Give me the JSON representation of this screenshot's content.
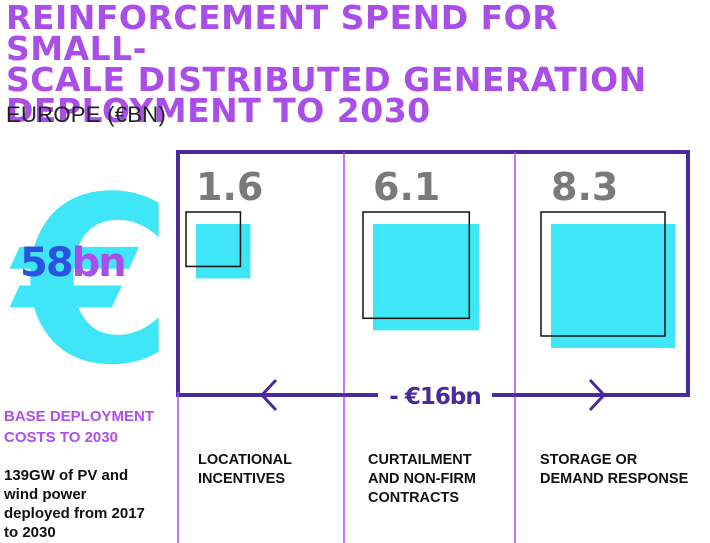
{
  "header": {
    "title_lines": [
      "REINFORCEMENT SPEND FOR SMALL-",
      "SCALE DISTRIBUTED GENERATION",
      "DEPLOYMENT TO 2030"
    ],
    "subtitle": "EUROPE (€BN)"
  },
  "total": {
    "symbol": "€",
    "value": "58",
    "unit": "bn",
    "label_lines": [
      "BASE DEPLOYMENT",
      "COSTS TO 2030"
    ],
    "description_lines": [
      "139GW of PV and",
      "wind power",
      "deployed from 2017",
      "to 2030"
    ]
  },
  "savings": {
    "label": "- €16bn"
  },
  "colors": {
    "accent": "#a94ee8",
    "cyan": "#3ee6f8",
    "navy": "#4a2a9c",
    "blue": "#2952e0",
    "gray": "#7a7a7a"
  },
  "chart_data": {
    "type": "bar",
    "unit": "€bn",
    "categories": [
      "LOCATIONAL INCENTIVES",
      "CURTAILMENT AND NON-FIRM CONTRACTS",
      "STORAGE OR DEMAND RESPONSE"
    ],
    "category_label_lines": [
      [
        "LOCATIONAL",
        "INCENTIVES"
      ],
      [
        "CURTAILMENT",
        "AND NON-FIRM",
        "CONTRACTS"
      ],
      [
        "STORAGE OR",
        "DEMAND RESPONSE"
      ]
    ],
    "values": [
      1.6,
      6.1,
      8.3
    ],
    "value_labels": [
      "1.6",
      "6.1",
      "8.3"
    ],
    "total_savings": 16,
    "base_deployment_cost": 58
  }
}
